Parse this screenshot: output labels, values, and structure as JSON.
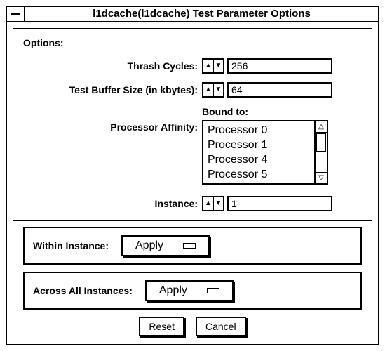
{
  "window": {
    "title": "l1dcache(l1dcache) Test Parameter Options"
  },
  "options_heading": "Options:",
  "fields": {
    "thrash_label": "Thrash Cycles:",
    "thrash_value": "256",
    "buffer_label": "Test Buffer Size (in kbytes):",
    "buffer_value": "64",
    "affinity_label": "Processor Affinity:",
    "bound_label": "Bound to:",
    "processors": [
      "Processor 0",
      "Processor 1",
      "Processor 4",
      "Processor 5"
    ],
    "instance_label": "Instance:",
    "instance_value": "1"
  },
  "panels": {
    "within_label": "Within Instance:",
    "within_button": "Apply",
    "across_label": "Across All Instances:",
    "across_button": "Apply"
  },
  "buttons": {
    "reset": "Reset",
    "cancel": "Cancel"
  },
  "glyphs": {
    "up": "▲",
    "down": "▼"
  },
  "colors": {
    "fg": "#000000",
    "bg": "#ffffff"
  }
}
